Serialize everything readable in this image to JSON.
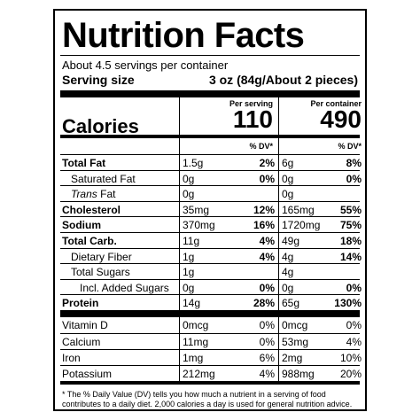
{
  "title": "Nutrition Facts",
  "servings_per_container": "About 4.5 servings per container",
  "serving_size_label": "Serving size",
  "serving_size_value": "3 oz (84g/About 2 pieces)",
  "calories_label": "Calories",
  "per_serving_label": "Per serving",
  "per_container_label": "Per container",
  "calories_per_serving": "110",
  "calories_per_container": "490",
  "dv_label": "% DV*",
  "nutrients": [
    {
      "name": "Total Fat",
      "bold": true,
      "italic_prefix": "",
      "amt1": "1.5g",
      "dv1": "2%",
      "amt2": "6g",
      "dv2": "8%"
    },
    {
      "name": "Saturated Fat",
      "bold": false,
      "indent": true,
      "amt1": "0g",
      "dv1": "0%",
      "amt2": "0g",
      "dv2": "0%"
    },
    {
      "name_italic": "Trans",
      "name": " Fat",
      "bold": false,
      "indent": true,
      "amt1": "0g",
      "dv1": "",
      "amt2": "0g",
      "dv2": ""
    },
    {
      "name": "Cholesterol",
      "bold": true,
      "amt1": "35mg",
      "dv1": "12%",
      "amt2": "165mg",
      "dv2": "55%"
    },
    {
      "name": "Sodium",
      "bold": true,
      "amt1": "370mg",
      "dv1": "16%",
      "amt2": "1720mg",
      "dv2": "75%"
    },
    {
      "name": "Total Carb.",
      "bold": true,
      "amt1": "11g",
      "dv1": "4%",
      "amt2": "49g",
      "dv2": "18%"
    },
    {
      "name": "Dietary Fiber",
      "bold": false,
      "indent": true,
      "amt1": "1g",
      "dv1": "4%",
      "amt2": "4g",
      "dv2": "14%"
    },
    {
      "name": "Total Sugars",
      "bold": false,
      "indent": true,
      "amt1": "1g",
      "dv1": "",
      "amt2": "4g",
      "dv2": ""
    },
    {
      "name": "Incl. Added Sugars",
      "bold": false,
      "indent2": true,
      "amt1": "0g",
      "dv1": "0%",
      "amt2": "0g",
      "dv2": "0%"
    },
    {
      "name": "Protein",
      "bold": true,
      "amt1": "14g",
      "dv1": "28%",
      "amt2": "65g",
      "dv2": "130%"
    }
  ],
  "vitamins": [
    {
      "name": "Vitamin D",
      "amt1": "0mcg",
      "dv1": "0%",
      "amt2": "0mcg",
      "dv2": "0%"
    },
    {
      "name": "Calcium",
      "amt1": "11mg",
      "dv1": "0%",
      "amt2": "53mg",
      "dv2": "4%"
    },
    {
      "name": "Iron",
      "amt1": "1mg",
      "dv1": "6%",
      "amt2": "2mg",
      "dv2": "10%"
    },
    {
      "name": "Potassium",
      "amt1": "212mg",
      "dv1": "4%",
      "amt2": "988mg",
      "dv2": "20%"
    }
  ],
  "footnote": "* The % Daily Value (DV) tells you how much a nutrient in a serving of food contributes to a daily diet. 2,000 calories a day is used for general nutrition advice."
}
